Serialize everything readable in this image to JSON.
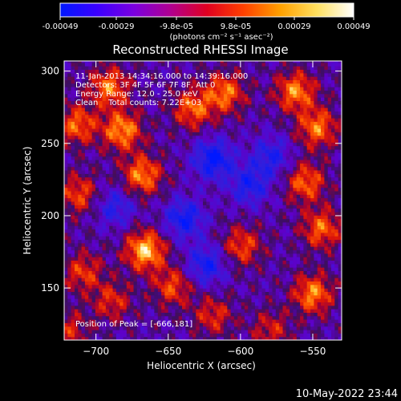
{
  "colorbar": {
    "ticks": [
      "-0.00049",
      "-0.00029",
      "-9.8e-05",
      "9.8e-05",
      "0.00029",
      "0.00049"
    ],
    "units_label": "(photons cm⁻² s⁻¹ asec⁻²)",
    "colors": [
      "#0018ff",
      "#3a00ff",
      "#7a00e0",
      "#b00090",
      "#e00020",
      "#ff4000",
      "#ffa000",
      "#ffe060",
      "#ffffff"
    ]
  },
  "info_lines": [
    "11-Jan-2013 14:34:16.000 to 14:39:16.000",
    "Detectors: 3F 4F 5F 6F 7F 8F, Att 0",
    "Energy Range: 12.0 - 25.0 keV",
    "Clean    Total counts: 7.22E+03"
  ],
  "peak_label": "Position of Peak = [-666,181]",
  "footer_timestamp": "10-May-2022 23:44",
  "chart_data": {
    "type": "heatmap",
    "title": "Reconstructed RHESSI Image",
    "xlabel": "Heliocentric X (arcsec)",
    "ylabel": "Heliocentric Y (arcsec)",
    "xlim": [
      -722,
      -530
    ],
    "ylim": [
      114,
      307
    ],
    "xticks": [
      -700,
      -650,
      -600,
      -550
    ],
    "xtick_labels": [
      "−700",
      "−650",
      "−600",
      "−550"
    ],
    "yticks": [
      150,
      200,
      250,
      300
    ],
    "ytick_labels": [
      "150",
      "200",
      "250",
      "300"
    ],
    "peak_position": [
      -666,
      181
    ],
    "hotspots": [
      {
        "x": -667,
        "y": 175,
        "level": 1.0
      },
      {
        "x": -692,
        "y": 288,
        "level": 0.75
      },
      {
        "x": -683,
        "y": 258,
        "level": 0.85
      },
      {
        "x": -669,
        "y": 227,
        "level": 0.8
      },
      {
        "x": -714,
        "y": 262,
        "level": 0.7
      },
      {
        "x": -713,
        "y": 214,
        "level": 0.6
      },
      {
        "x": -634,
        "y": 273,
        "level": 0.7
      },
      {
        "x": -612,
        "y": 284,
        "level": 0.75
      },
      {
        "x": -563,
        "y": 285,
        "level": 0.8
      },
      {
        "x": -548,
        "y": 260,
        "level": 0.75
      },
      {
        "x": -556,
        "y": 222,
        "level": 0.7
      },
      {
        "x": -545,
        "y": 190,
        "level": 0.7
      },
      {
        "x": -551,
        "y": 145,
        "level": 0.8
      },
      {
        "x": -600,
        "y": 178,
        "level": 0.6
      },
      {
        "x": -648,
        "y": 150,
        "level": 0.6
      },
      {
        "x": -710,
        "y": 160,
        "level": 0.55
      },
      {
        "x": -690,
        "y": 140,
        "level": 0.5
      },
      {
        "x": -620,
        "y": 130,
        "level": 0.5
      },
      {
        "x": -580,
        "y": 120,
        "level": 0.45
      },
      {
        "x": -720,
        "y": 120,
        "level": 0.45
      }
    ],
    "coldspots": [
      {
        "x": -620,
        "y": 238,
        "level": -0.8
      },
      {
        "x": -640,
        "y": 197,
        "level": -0.7
      },
      {
        "x": -595,
        "y": 220,
        "level": -0.6
      },
      {
        "x": -580,
        "y": 240,
        "level": -0.55
      },
      {
        "x": -625,
        "y": 165,
        "level": -0.65
      },
      {
        "x": -688,
        "y": 205,
        "level": -0.5
      }
    ]
  }
}
